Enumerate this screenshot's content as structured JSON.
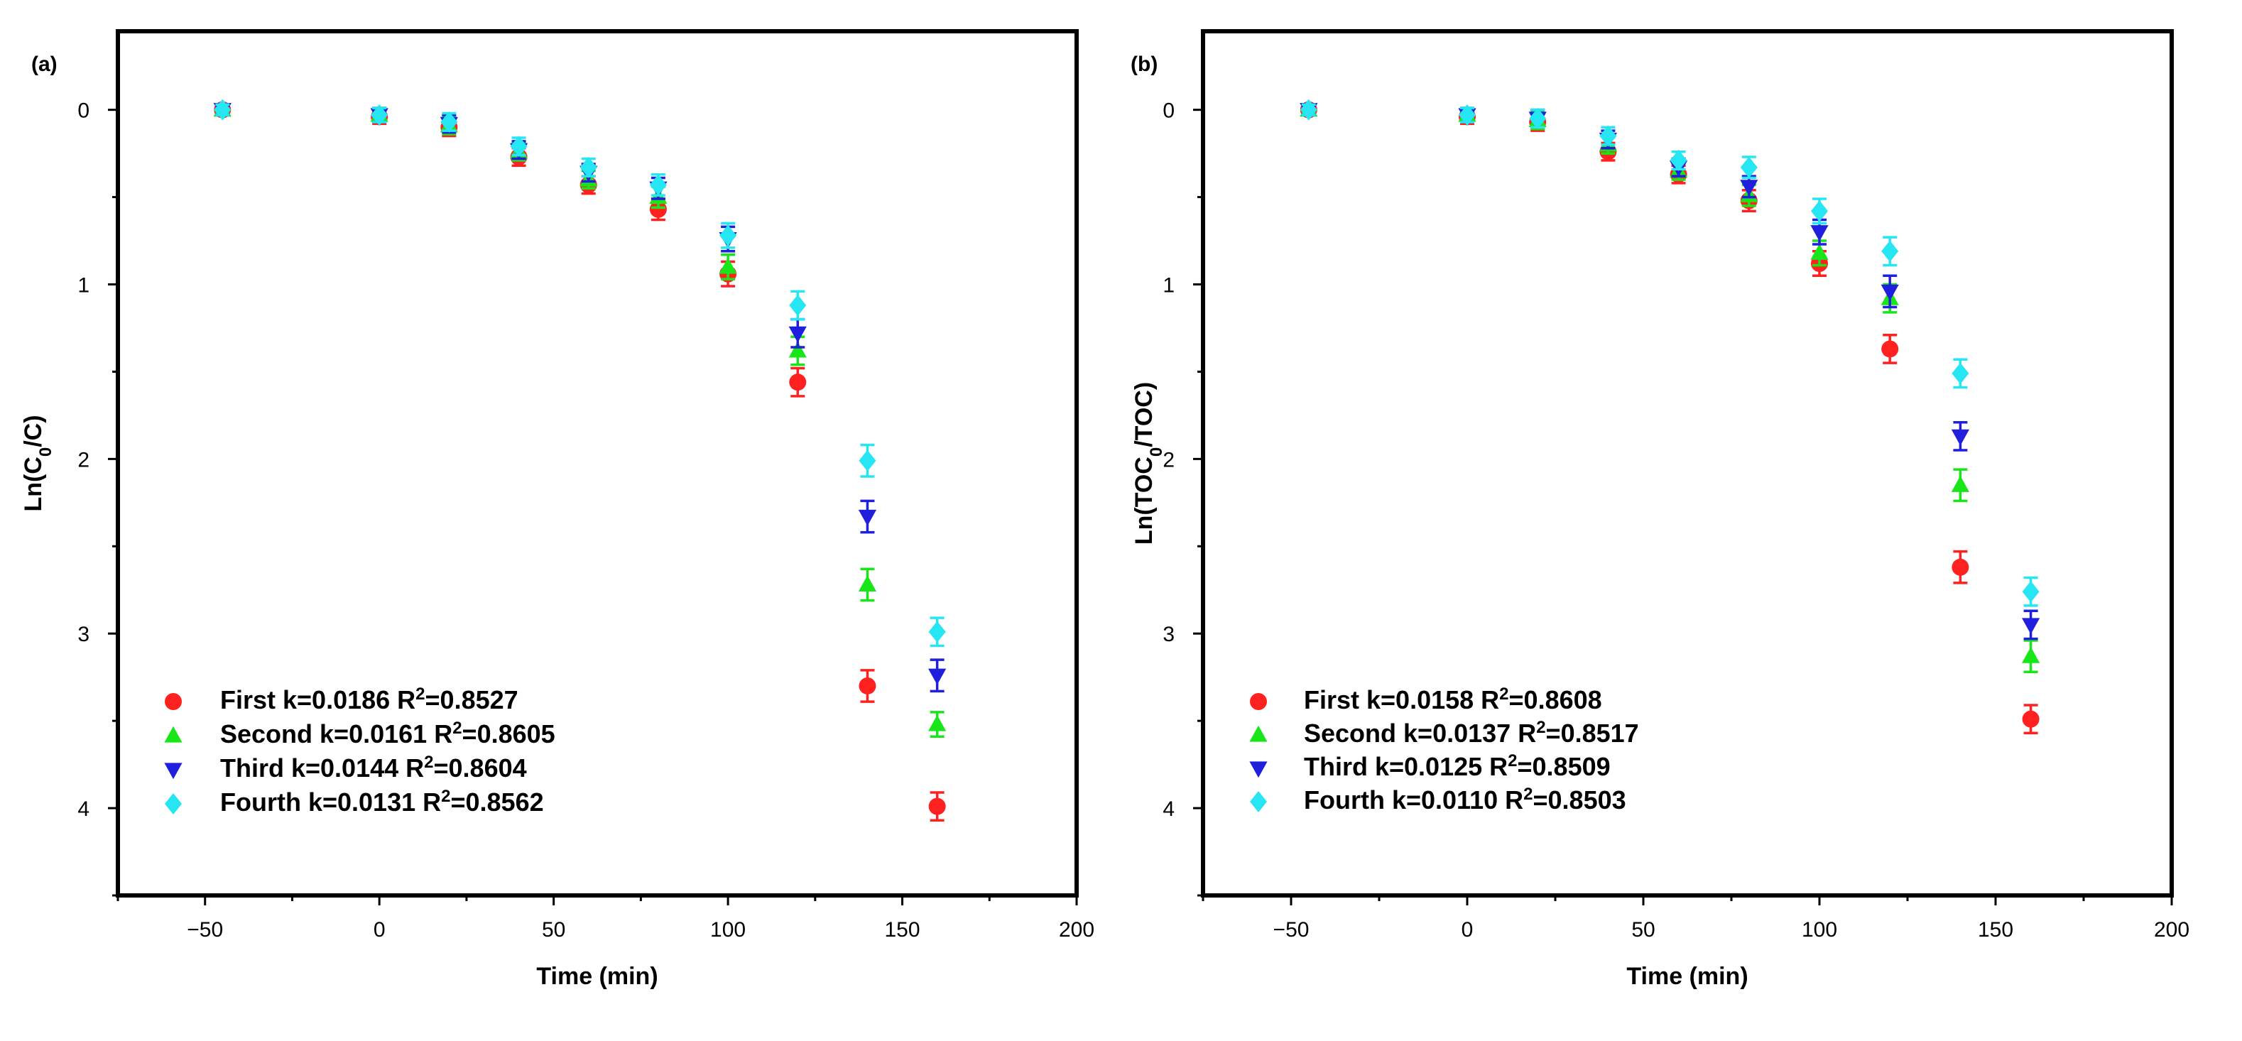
{
  "chart_data": [
    {
      "type": "scatter",
      "title": "(a)",
      "xlabel": "Time (min)",
      "ylabel_main": "Ln(C",
      "ylabel_sub": "0",
      "ylabel_tail": "/C)",
      "xlim": [
        -75,
        200
      ],
      "ylim": [
        -0.45,
        4.5
      ],
      "xticks": [
        -50,
        0,
        50,
        100,
        150,
        200
      ],
      "yticks": [
        0,
        1,
        2,
        3,
        4
      ],
      "x": [
        -45,
        0,
        20,
        40,
        60,
        80,
        100,
        120,
        140,
        160
      ],
      "series": [
        {
          "name": "First",
          "k": "k=0.0186",
          "r2": "=0.8527",
          "color": "#ff2020",
          "marker": "circle",
          "values": [
            0,
            0.04,
            0.1,
            0.27,
            0.43,
            0.57,
            0.94,
            1.56,
            3.3,
            3.99
          ],
          "errors": [
            0.03,
            0.04,
            0.05,
            0.05,
            0.05,
            0.06,
            0.07,
            0.08,
            0.09,
            0.08
          ]
        },
        {
          "name": "Second",
          "k": "k=0.0161",
          "r2": "=0.8605",
          "color": "#19e619",
          "marker": "triangle-up",
          "values": [
            0,
            0.03,
            0.09,
            0.24,
            0.4,
            0.5,
            0.9,
            1.38,
            2.72,
            3.52
          ],
          "errors": [
            0.03,
            0.04,
            0.05,
            0.05,
            0.05,
            0.06,
            0.07,
            0.08,
            0.09,
            0.07
          ]
        },
        {
          "name": "Third",
          "k": "k=0.0144",
          "r2": "=0.8604",
          "color": "#1f1fdd",
          "marker": "triangle-down",
          "values": [
            0,
            0.03,
            0.08,
            0.23,
            0.36,
            0.45,
            0.74,
            1.28,
            2.33,
            3.24
          ],
          "errors": [
            0.03,
            0.04,
            0.05,
            0.05,
            0.05,
            0.06,
            0.07,
            0.08,
            0.09,
            0.09
          ]
        },
        {
          "name": "Fourth",
          "k": "k=0.0131",
          "r2": "=0.8562",
          "color": "#25e6f2",
          "marker": "diamond",
          "values": [
            0,
            0.03,
            0.07,
            0.21,
            0.33,
            0.43,
            0.72,
            1.12,
            2.01,
            2.99
          ],
          "errors": [
            0.03,
            0.04,
            0.05,
            0.05,
            0.05,
            0.06,
            0.07,
            0.08,
            0.09,
            0.08
          ]
        }
      ]
    },
    {
      "type": "scatter",
      "title": "(b)",
      "xlabel": "Time (min)",
      "ylabel_main": "Ln(TOC",
      "ylabel_sub": "0",
      "ylabel_tail": "/TOC)",
      "xlim": [
        -75,
        200
      ],
      "ylim": [
        -0.45,
        4.5
      ],
      "xticks": [
        -50,
        0,
        50,
        100,
        150,
        200
      ],
      "yticks": [
        0,
        1,
        2,
        3,
        4
      ],
      "x": [
        -45,
        0,
        20,
        40,
        60,
        80,
        100,
        120,
        140,
        160
      ],
      "series": [
        {
          "name": "First",
          "k": "k=0.0158",
          "r2": "=0.8608",
          "color": "#ff2020",
          "marker": "circle",
          "values": [
            0,
            0.04,
            0.07,
            0.24,
            0.37,
            0.52,
            0.88,
            1.37,
            2.62,
            3.49
          ],
          "errors": [
            0.03,
            0.04,
            0.05,
            0.05,
            0.05,
            0.06,
            0.07,
            0.08,
            0.09,
            0.08
          ]
        },
        {
          "name": "Second",
          "k": "k=0.0137",
          "r2": "=0.8517",
          "color": "#19e619",
          "marker": "triangle-up",
          "values": [
            0,
            0.03,
            0.06,
            0.2,
            0.35,
            0.49,
            0.82,
            1.08,
            2.15,
            3.13
          ],
          "errors": [
            0.03,
            0.04,
            0.05,
            0.05,
            0.05,
            0.06,
            0.07,
            0.08,
            0.09,
            0.09
          ]
        },
        {
          "name": "Third",
          "k": "k=0.0125",
          "r2": "=0.8509",
          "color": "#1f1fdd",
          "marker": "triangle-down",
          "values": [
            0,
            0.03,
            0.05,
            0.17,
            0.33,
            0.44,
            0.7,
            1.04,
            1.87,
            2.95
          ],
          "errors": [
            0.03,
            0.04,
            0.05,
            0.05,
            0.05,
            0.06,
            0.07,
            0.09,
            0.08,
            0.08
          ]
        },
        {
          "name": "Fourth",
          "k": "k=0.0110",
          "r2": "=0.8503",
          "color": "#25e6f2",
          "marker": "diamond",
          "values": [
            0,
            0.03,
            0.05,
            0.15,
            0.29,
            0.33,
            0.58,
            0.81,
            1.51,
            2.76
          ],
          "errors": [
            0.03,
            0.04,
            0.05,
            0.05,
            0.05,
            0.06,
            0.07,
            0.08,
            0.08,
            0.08
          ]
        }
      ]
    }
  ]
}
